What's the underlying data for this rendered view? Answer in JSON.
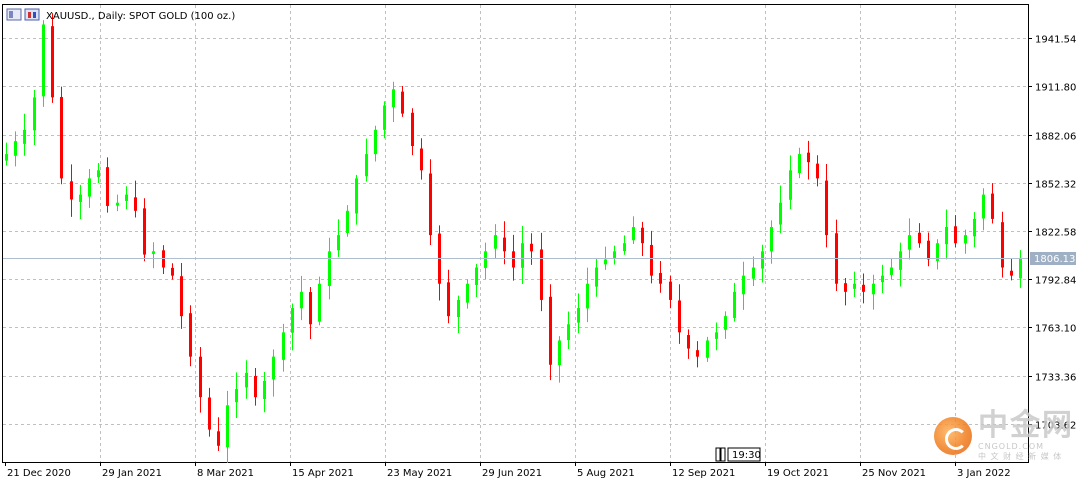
{
  "header": {
    "title": "XAUUSD., Daily:  SPOT GOLD (100 oz.)"
  },
  "current_price": "1806.13",
  "cursor_time": "19:30",
  "watermark": {
    "brand": "中金网",
    "url": "CNGOLD.COM",
    "tagline": "中 文 财 经 新 媒 体"
  },
  "colors": {
    "up": "#00ff00",
    "down": "#ff0000",
    "grid": "#c0c0c0",
    "price_line": "#b0bfcf",
    "price_label_bg": "#9fb0c4"
  },
  "chart_data": {
    "type": "candlestick",
    "symbol": "XAUUSD.",
    "timeframe": "Daily",
    "ylim": [
      1680,
      1962
    ],
    "y_ticks": [
      1941.54,
      1911.8,
      1882.06,
      1852.32,
      1822.58,
      1792.84,
      1763.1,
      1733.36,
      1703.62
    ],
    "x_labels": [
      "21 Dec 2020",
      "29 Jan 2021",
      "8 Mar 2021",
      "15 Apr 2021",
      "23 May 2021",
      "29 Jun 2021",
      "5 Aug 2021",
      "12 Sep 2021",
      "19 Oct 2021",
      "25 Nov 2021",
      "3 Jan 2022"
    ],
    "grid": true,
    "approx_closes": [
      1870,
      1878,
      1885,
      1905,
      1950,
      1905,
      1855,
      1842,
      1845,
      1855,
      1860,
      1838,
      1840,
      1845,
      1835,
      1808,
      1810,
      1800,
      1795,
      1770,
      1745,
      1720,
      1700,
      1690,
      1715,
      1725,
      1735,
      1720,
      1730,
      1745,
      1760,
      1775,
      1785,
      1765,
      1790,
      1810,
      1820,
      1835,
      1855,
      1870,
      1885,
      1900,
      1910,
      1895,
      1875,
      1860,
      1820,
      1790,
      1770,
      1780,
      1790,
      1800,
      1810,
      1820,
      1810,
      1800,
      1815,
      1810,
      1780,
      1740,
      1755,
      1765,
      1775,
      1790,
      1800,
      1805,
      1810,
      1815,
      1825,
      1815,
      1795,
      1790,
      1780,
      1760,
      1750,
      1745,
      1755,
      1760,
      1770,
      1785,
      1795,
      1800,
      1810,
      1825,
      1840,
      1860,
      1870,
      1865,
      1855,
      1820,
      1790,
      1785,
      1790,
      1785,
      1790,
      1795,
      1800,
      1810,
      1820,
      1815,
      1805,
      1815,
      1825,
      1815,
      1820,
      1830,
      1845,
      1830,
      1800,
      1795,
      1806
    ]
  }
}
